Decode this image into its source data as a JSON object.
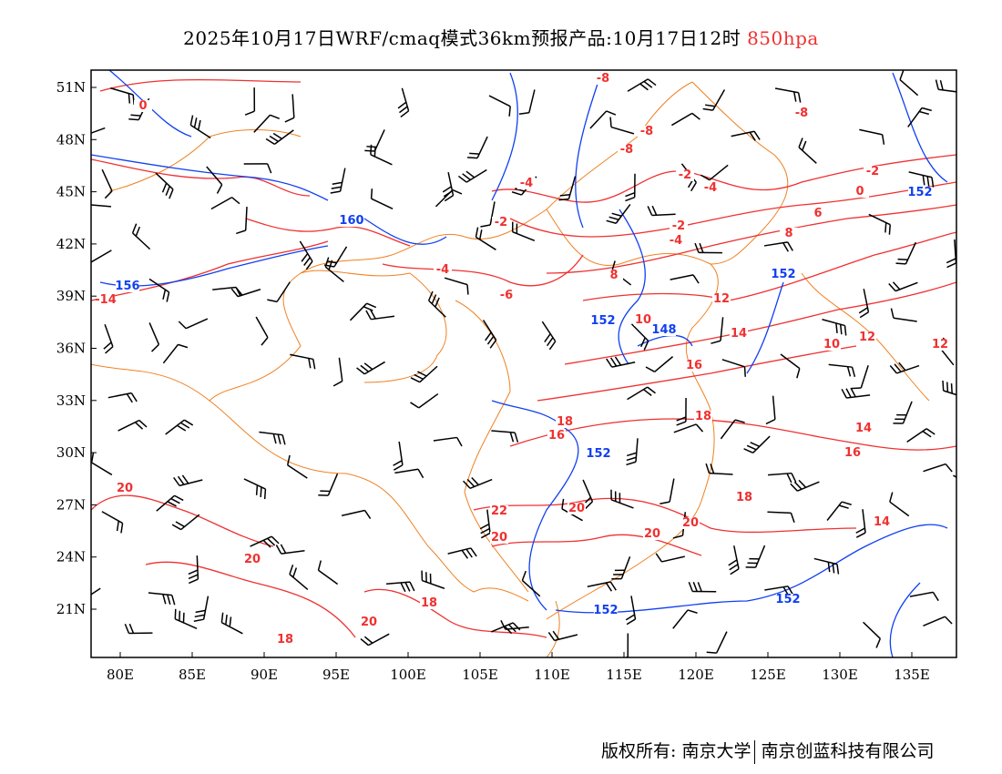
{
  "title": {
    "main": "2025年10月17日WRF/cmaq模式36km预报产品:10月17日12时",
    "level": "850hpa"
  },
  "axes": {
    "lat_labels": [
      "51N",
      "48N",
      "45N",
      "42N",
      "39N",
      "36N",
      "33N",
      "30N",
      "27N",
      "24N",
      "21N"
    ],
    "lon_labels": [
      "80E",
      "85E",
      "90E",
      "95E",
      "100E",
      "105E",
      "110E",
      "115E",
      "120E",
      "125E",
      "130E",
      "135E"
    ]
  },
  "layers": {
    "temperature_color": "#f03030",
    "height_color": "#1040f0",
    "border_color": "#f08020",
    "wind_color": "#000000"
  },
  "temperature_labels": [
    "0",
    "-8",
    "-8",
    "-8",
    "-8",
    "-4",
    "-4",
    "-4",
    "-2",
    "-2",
    "-2",
    "-2",
    "0",
    "-4",
    "-6",
    "6",
    "8",
    "-14",
    "8",
    "10",
    "12",
    "14",
    "16",
    "10",
    "12",
    "12",
    "14",
    "16",
    "18",
    "16",
    "18",
    "20",
    "20",
    "22",
    "20",
    "20",
    "20",
    "18",
    "20",
    "18",
    "20",
    "18",
    "14"
  ],
  "height_labels": [
    "160",
    "156",
    "152",
    "148",
    "152",
    "152",
    "152",
    "152",
    "152"
  ],
  "footer": {
    "left": "版权所有: 南京大学",
    "right": "南京创蓝科技有限公司"
  }
}
